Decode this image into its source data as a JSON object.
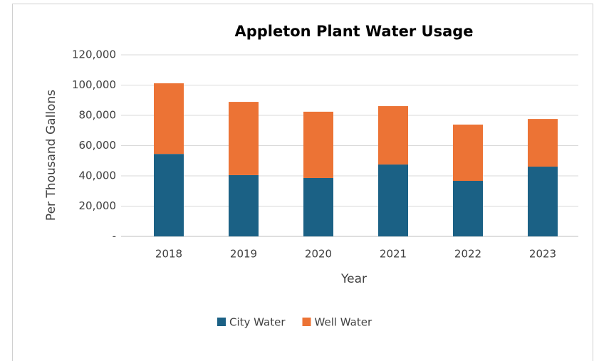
{
  "chart_data": {
    "type": "stacked_bar",
    "title": "Appleton Plant Water Usage",
    "x_label": "Year",
    "y_label": "Per Thousand Gallons",
    "categories": [
      "2018",
      "2019",
      "2020",
      "2021",
      "2022",
      "2023"
    ],
    "series": [
      {
        "name": "City Water",
        "color": "#1b6185",
        "values": [
          54500,
          40500,
          38600,
          47500,
          36700,
          46100
        ]
      },
      {
        "name": "Well Water",
        "color": "#ec7335",
        "values": [
          46700,
          48400,
          43800,
          38600,
          37200,
          31500
        ]
      }
    ],
    "ylim": [
      0,
      120000
    ],
    "yticks": [
      {
        "value": 0,
        "label": "-"
      },
      {
        "value": 20000,
        "label": "20,000"
      },
      {
        "value": 40000,
        "label": "40,000"
      },
      {
        "value": 60000,
        "label": "60,000"
      },
      {
        "value": 80000,
        "label": "80,000"
      },
      {
        "value": 100000,
        "label": "100,000"
      },
      {
        "value": 120000,
        "label": "120,000"
      }
    ],
    "grid": true,
    "legend": "bottom"
  }
}
